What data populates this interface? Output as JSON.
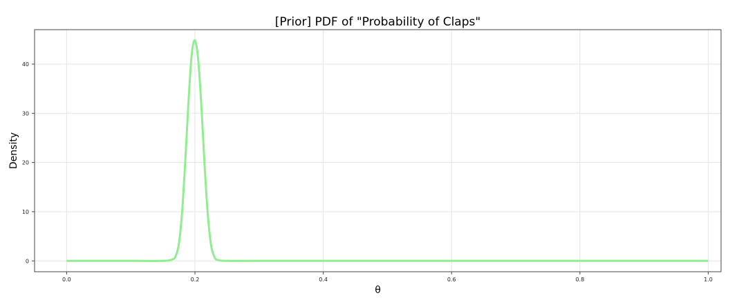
{
  "chart_data": {
    "type": "line",
    "title": "[Prior] PDF of \"Probability of Claps\"",
    "xlabel": "θ",
    "ylabel": "Density",
    "xlim": [
      -0.05,
      1.02
    ],
    "ylim": [
      -2.2,
      47
    ],
    "xticks": [
      0.0,
      0.2,
      0.4,
      0.6,
      0.8,
      1.0
    ],
    "xtick_labels": [
      "0.0",
      "0.2",
      "0.4",
      "0.6",
      "0.8",
      "1.0"
    ],
    "yticks": [
      0,
      10,
      20,
      30,
      40
    ],
    "ytick_labels": [
      "0",
      "10",
      "20",
      "30",
      "40"
    ],
    "grid": true,
    "series": [
      {
        "color": "#90ee90",
        "x": [
          0.0,
          0.05,
          0.1,
          0.15,
          0.165,
          0.17,
          0.175,
          0.18,
          0.185,
          0.19,
          0.195,
          0.2,
          0.205,
          0.21,
          0.215,
          0.22,
          0.225,
          0.23,
          0.235,
          0.25,
          0.3,
          0.4,
          0.5,
          0.6,
          0.7,
          0.8,
          0.9,
          1.0
        ],
        "y": [
          0,
          0,
          0,
          0,
          0.3,
          1.0,
          3.5,
          10.0,
          20.5,
          32.5,
          42.0,
          44.8,
          41.0,
          31.5,
          19.5,
          9.5,
          3.3,
          0.9,
          0.2,
          0,
          0,
          0,
          0,
          0,
          0,
          0,
          0,
          0
        ]
      }
    ]
  }
}
